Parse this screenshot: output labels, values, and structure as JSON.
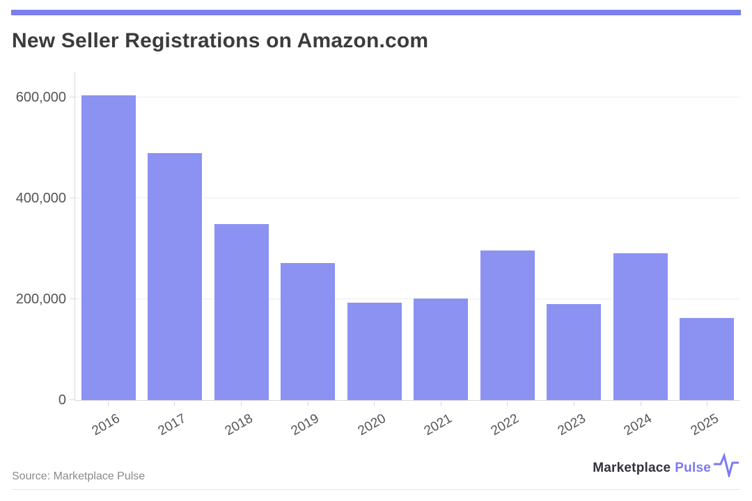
{
  "header": {
    "title": "New Seller Registrations on Amazon.com"
  },
  "chart_data": {
    "type": "bar",
    "title": "New Seller Registrations on Amazon.com",
    "categories": [
      "2016",
      "2017",
      "2018",
      "2019",
      "2020",
      "2021",
      "2022",
      "2023",
      "2024",
      "2025"
    ],
    "values": [
      605000,
      490000,
      350000,
      272000,
      193000,
      202000,
      297000,
      190000,
      292000,
      163000
    ],
    "xlabel": "",
    "ylabel": "",
    "ylim": [
      0,
      650000
    ],
    "yticks": [
      0,
      200000,
      400000,
      600000
    ],
    "ytick_labels": [
      "0",
      "200,000",
      "400,000",
      "600,000"
    ],
    "grid": "horizontal-light",
    "legend": "none",
    "bar_color": "#8B92F2",
    "x_label_angle_deg": -30
  },
  "footer": {
    "source_label": "Source: Marketplace Pulse",
    "brand": {
      "word_primary": "Marketplace",
      "word_accent": "Pulse",
      "icon": "pulse-icon"
    }
  },
  "colors": {
    "accent_strip": "#7A7FF2",
    "bar_fill": "#8B92F2",
    "title_text": "#3B3B3B",
    "axis_text": "#555555",
    "gridline": "#EDEDED",
    "axis_line": "#D9D9D9",
    "source_text": "#8A8A8A",
    "brand_dark": "#33333F",
    "brand_accent": "#7A7AF5"
  }
}
